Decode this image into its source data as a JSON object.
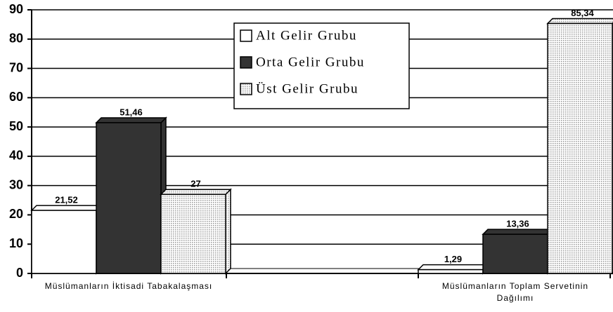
{
  "chart_data": {
    "type": "bar3d",
    "categories": [
      "Müslümanların İktisadi Tabakalaşması",
      "Müslümanların Toplam Servetinin Dağılımı"
    ],
    "series": [
      {
        "name": "Alt Gelir Grubu",
        "color": "#ffffff",
        "values": [
          21.52,
          1.29
        ],
        "value_labels": [
          "21,52",
          "1,29"
        ]
      },
      {
        "name": "Orta Gelir Grubu",
        "color": "#333333",
        "values": [
          51.46,
          13.36
        ],
        "value_labels": [
          "51,46",
          "13,36"
        ]
      },
      {
        "name": "Üst Gelir Grubu",
        "color": "#d9d9d9",
        "values": [
          27,
          85.34
        ],
        "value_labels": [
          "27",
          "85,34"
        ]
      }
    ],
    "ylim": [
      0,
      90
    ],
    "yticks": [
      0,
      10,
      20,
      30,
      40,
      50,
      60,
      70,
      80,
      90
    ],
    "grid": true
  }
}
